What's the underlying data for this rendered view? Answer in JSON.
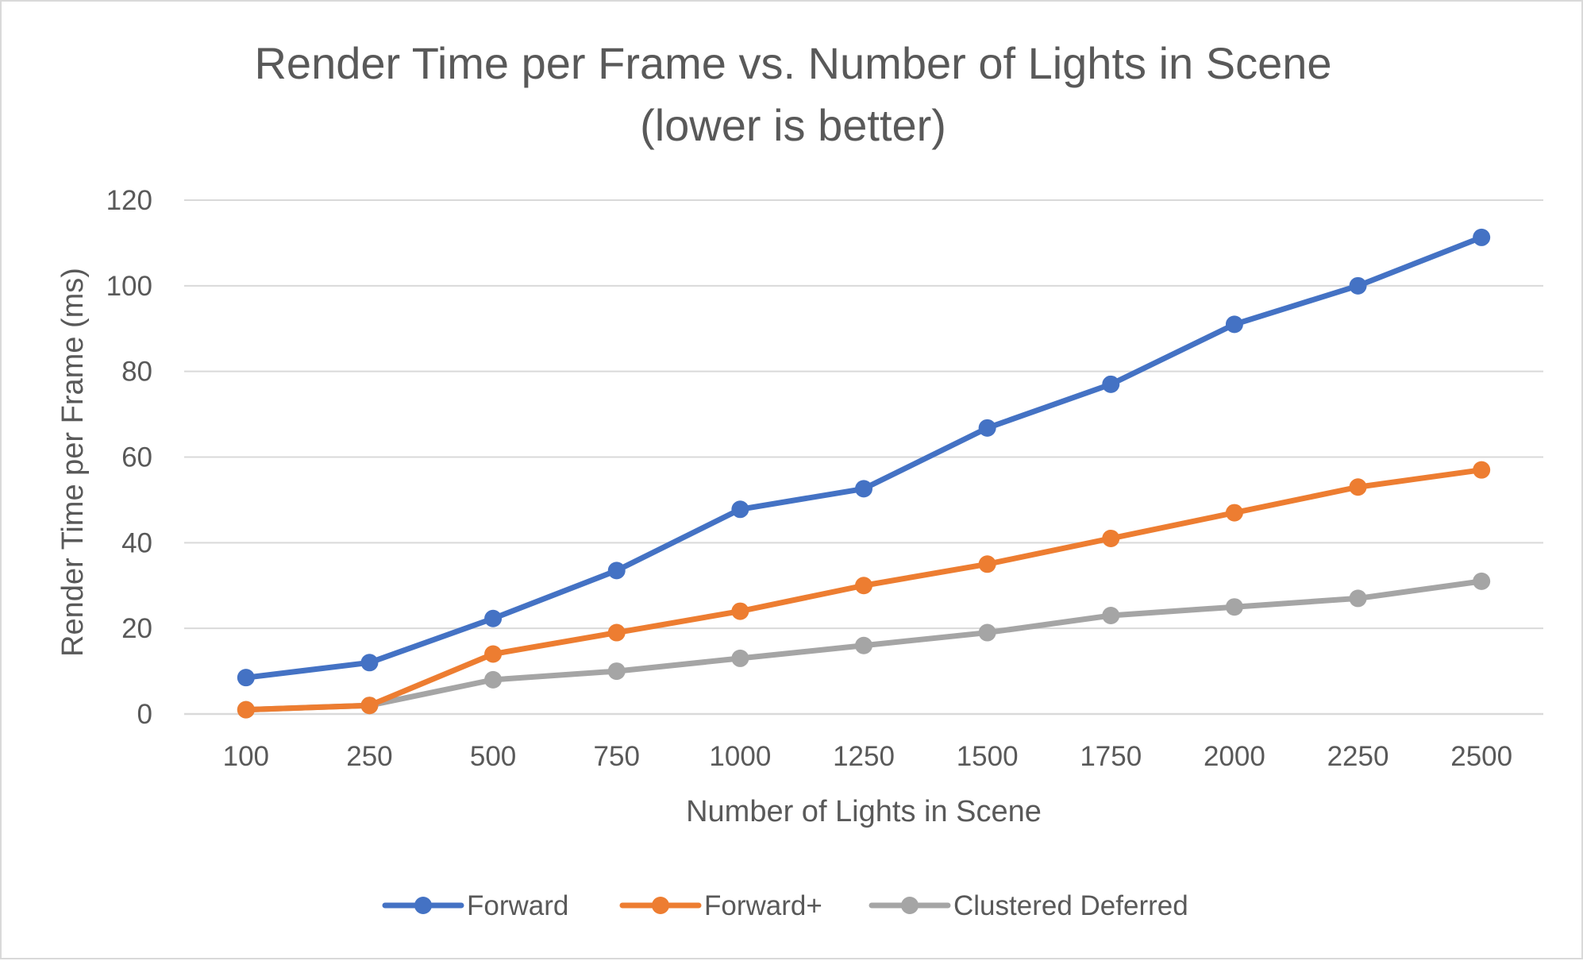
{
  "chart_data": {
    "type": "line",
    "title": "Render Time per Frame vs. Number of Lights in Scene",
    "subtitle": "(lower is better)",
    "xlabel": "Number of Lights in Scene",
    "ylabel": "Render Time per Frame (ms)",
    "categories": [
      "100",
      "250",
      "500",
      "750",
      "1000",
      "1250",
      "1500",
      "1750",
      "2000",
      "2250",
      "2500"
    ],
    "ylim": [
      0,
      120
    ],
    "yticks": [
      0,
      20,
      40,
      60,
      80,
      100,
      120
    ],
    "grid": true,
    "legend_position": "bottom",
    "series": [
      {
        "name": "Forward",
        "color": "#4472c4",
        "values": [
          8.5,
          12,
          22.3,
          33.5,
          47.8,
          52.6,
          66.8,
          77,
          91,
          100,
          111.3
        ]
      },
      {
        "name": "Forward+",
        "color": "#ed7d31",
        "values": [
          1,
          2,
          14,
          19,
          24,
          30,
          35,
          41,
          47,
          53,
          57
        ]
      },
      {
        "name": "Clustered Deferred",
        "color": "#a5a5a5",
        "values": [
          1,
          2,
          8,
          10,
          13,
          16,
          19,
          23,
          25,
          27,
          31
        ]
      }
    ]
  }
}
